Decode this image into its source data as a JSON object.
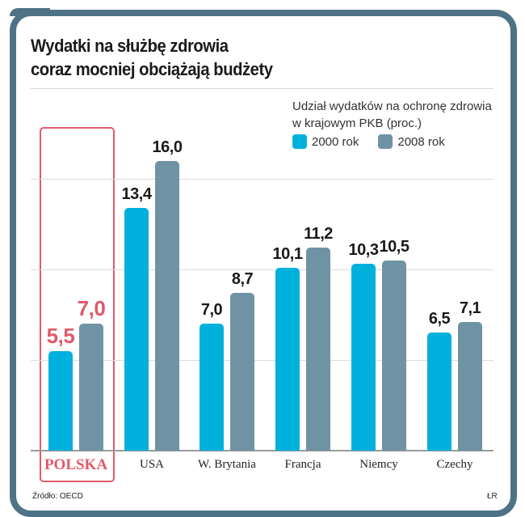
{
  "header": {
    "title_line1": "Wydatki na służbę zdrowia",
    "title_line2": "coraz mocniej obciążają budżety"
  },
  "legend": {
    "title_line1": "Udział wydatków na ochronę zdrowia",
    "title_line2": "w krajowym PKB (proc.)",
    "items": [
      {
        "label": "2000 rok",
        "color": "#00b0dc"
      },
      {
        "label": "2008 rok",
        "color": "#6f93a5"
      }
    ]
  },
  "footer": {
    "source": "Źródło: OECD",
    "credit": "ŁR"
  },
  "colors": {
    "frame": "#4f7386",
    "series_2000": "#00b0dc",
    "series_2008": "#6f93a5",
    "highlight": "#e05a6a"
  },
  "chart_data": {
    "type": "bar",
    "title": "Wydatki na służbę zdrowia coraz mocniej obciążają budżety",
    "subtitle": "Udział wydatków na ochronę zdrowia w krajowym PKB (proc.)",
    "categories": [
      "POLSKA",
      "USA",
      "W. Brytania",
      "Francja",
      "Niemcy",
      "Czechy"
    ],
    "series": [
      {
        "name": "2000 rok",
        "values": [
          5.5,
          13.4,
          7.0,
          10.1,
          10.3,
          6.5
        ]
      },
      {
        "name": "2008 rok",
        "values": [
          7.0,
          16.0,
          8.7,
          11.2,
          10.5,
          7.1
        ]
      }
    ],
    "value_labels": {
      "2000 rok": [
        "5,5",
        "13,4",
        "7,0",
        "10,1",
        "10,3",
        "6,5"
      ],
      "2008 rok": [
        "7,0",
        "16,0",
        "8,7",
        "11,2",
        "10,5",
        "7,1"
      ]
    },
    "highlighted_category": "POLSKA",
    "xlabel": "",
    "ylabel": "",
    "ylim": [
      0,
      18.6
    ],
    "gridlines": [
      5,
      10,
      15
    ],
    "grid": true,
    "legend_position": "top-right",
    "source": "Źródło: OECD"
  }
}
